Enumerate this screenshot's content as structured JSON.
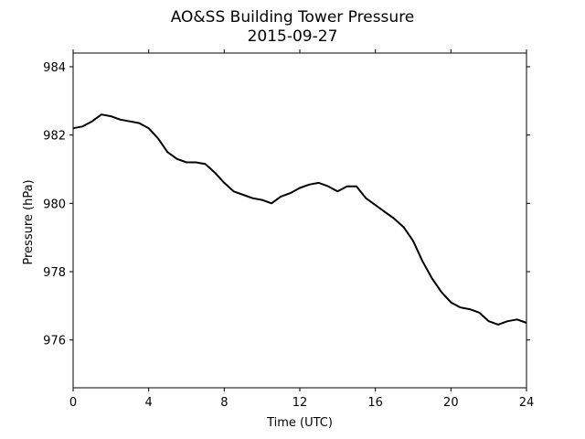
{
  "chart_data": {
    "type": "line",
    "title": "AO&SS Building Tower Pressure",
    "subtitle": "2015-09-27",
    "xlabel": "Time (UTC)",
    "ylabel": "Pressure (hPa)",
    "xlim": [
      0,
      24
    ],
    "ylim": [
      974.6,
      984.4
    ],
    "xticks": [
      0,
      4,
      8,
      12,
      16,
      20,
      24
    ],
    "yticks": [
      976,
      978,
      980,
      982,
      984
    ],
    "grid": false,
    "legend": "none",
    "series": [
      {
        "color": "#000000",
        "x": [
          0,
          0.5,
          1.0,
          1.5,
          2.0,
          2.5,
          3.0,
          3.5,
          4.0,
          4.5,
          5.0,
          5.5,
          6.0,
          6.5,
          7.0,
          7.5,
          8.0,
          8.5,
          9.0,
          9.5,
          10.0,
          10.5,
          11.0,
          11.5,
          12.0,
          12.5,
          13.0,
          13.5,
          14.0,
          14.5,
          15.0,
          15.5,
          16.0,
          16.5,
          17.0,
          17.5,
          18.0,
          18.5,
          19.0,
          19.5,
          20.0,
          20.5,
          21.0,
          21.5,
          22.0,
          22.5,
          23.0,
          23.5,
          24.0
        ],
        "y": [
          982.2,
          982.25,
          982.4,
          982.6,
          982.55,
          982.45,
          982.4,
          982.35,
          982.2,
          981.9,
          981.5,
          981.3,
          981.2,
          981.2,
          981.15,
          980.9,
          980.6,
          980.35,
          980.25,
          980.15,
          980.1,
          980.0,
          980.2,
          980.3,
          980.45,
          980.55,
          980.6,
          980.5,
          980.35,
          980.5,
          980.5,
          980.15,
          979.95,
          979.75,
          979.55,
          979.3,
          978.9,
          978.3,
          977.8,
          977.4,
          977.1,
          976.95,
          976.9,
          976.8,
          976.55,
          976.45,
          976.55,
          976.6,
          976.5
        ]
      }
    ]
  }
}
